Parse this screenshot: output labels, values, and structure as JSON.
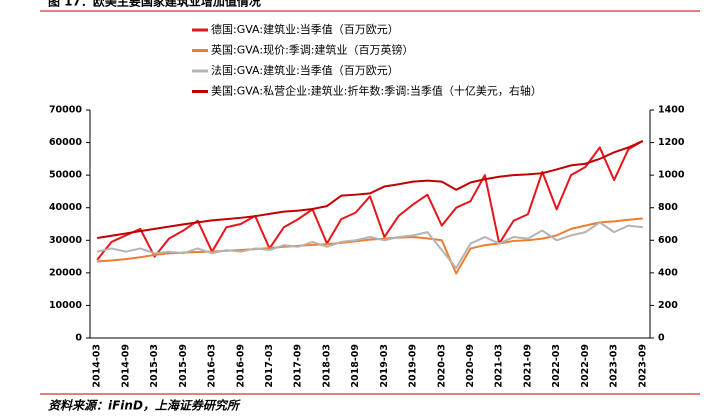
{
  "chart_data": {
    "type": "line",
    "title": "图 17：欧美主要国家建筑业增加值情况",
    "source": "资料来源：iFinD，上海证券研究所",
    "categories": [
      "2014-03",
      null,
      "2014-09",
      null,
      "2015-03",
      null,
      "2015-09",
      null,
      "2016-03",
      null,
      "2016-09",
      null,
      "2017-03",
      null,
      "2017-09",
      null,
      "2018-03",
      null,
      "2018-09",
      null,
      "2019-03",
      null,
      "2019-09",
      null,
      "2020-03",
      null,
      "2020-09",
      null,
      "2021-03",
      null,
      "2021-09",
      null,
      "2022-03",
      null,
      "2022-09",
      null,
      "2023-03",
      null,
      "2023-09"
    ],
    "ylim": [
      0,
      70000
    ],
    "yticks": [
      0,
      10000,
      20000,
      30000,
      40000,
      50000,
      60000,
      70000
    ],
    "y2lim": [
      0,
      1400
    ],
    "y2ticks": [
      0,
      200,
      400,
      600,
      800,
      1000,
      1200,
      1400
    ],
    "series": [
      {
        "name": "德国:GVA:建筑业:当季值（百万欧元）",
        "color": "#e8141b",
        "values": [
          24000,
          29500,
          31500,
          33500,
          25000,
          30500,
          33000,
          36000,
          26500,
          34000,
          35000,
          37500,
          27500,
          34000,
          36500,
          39500,
          29000,
          36500,
          38500,
          43500,
          31000,
          37500,
          41000,
          44000,
          34500,
          40000,
          42000,
          50000,
          29000,
          36000,
          38000,
          51000,
          39500,
          50000,
          52500,
          58500,
          48500,
          58000,
          60500
        ]
      },
      {
        "name": "英国:GVA:现价:季调:建筑业（百万英镑）",
        "color": "#ed7d31",
        "values": [
          23500,
          23800,
          24200,
          24800,
          25500,
          26000,
          26200,
          26400,
          26500,
          26800,
          27000,
          27300,
          27600,
          28000,
          28300,
          28600,
          28800,
          29200,
          29700,
          30200,
          30500,
          30800,
          31000,
          30600,
          30000,
          19800,
          27500,
          28500,
          29000,
          29800,
          30000,
          30500,
          31500,
          33500,
          34500,
          35500,
          35800,
          36300,
          36700
        ]
      },
      {
        "name": "法国:GVA:建筑业:当季值（百万欧元）",
        "color": "#b4b4b4",
        "values": [
          26500,
          27500,
          26500,
          27500,
          26000,
          26500,
          26000,
          27500,
          26000,
          27000,
          26500,
          27500,
          27000,
          28500,
          28000,
          29500,
          28000,
          29500,
          30000,
          31000,
          30000,
          31000,
          31500,
          32500,
          27000,
          21500,
          29000,
          31000,
          29000,
          31000,
          30500,
          33000,
          30000,
          31500,
          32500,
          35500,
          32500,
          34500,
          34000
        ]
      },
      {
        "name": "美国:GVA:私营企业:建筑业:折年数:季调:当季值（十亿美元，右轴）",
        "color": "#c00000",
        "axis": "y2",
        "values": [
          614,
          628,
          642,
          656,
          670,
          684,
          698,
          710,
          722,
          730,
          738,
          748,
          762,
          776,
          782,
          792,
          810,
          874,
          880,
          888,
          930,
          944,
          960,
          966,
          960,
          910,
          955,
          975,
          990,
          1000,
          1005,
          1012,
          1035,
          1060,
          1070,
          1100,
          1140,
          1170,
          1210
        ]
      }
    ]
  }
}
